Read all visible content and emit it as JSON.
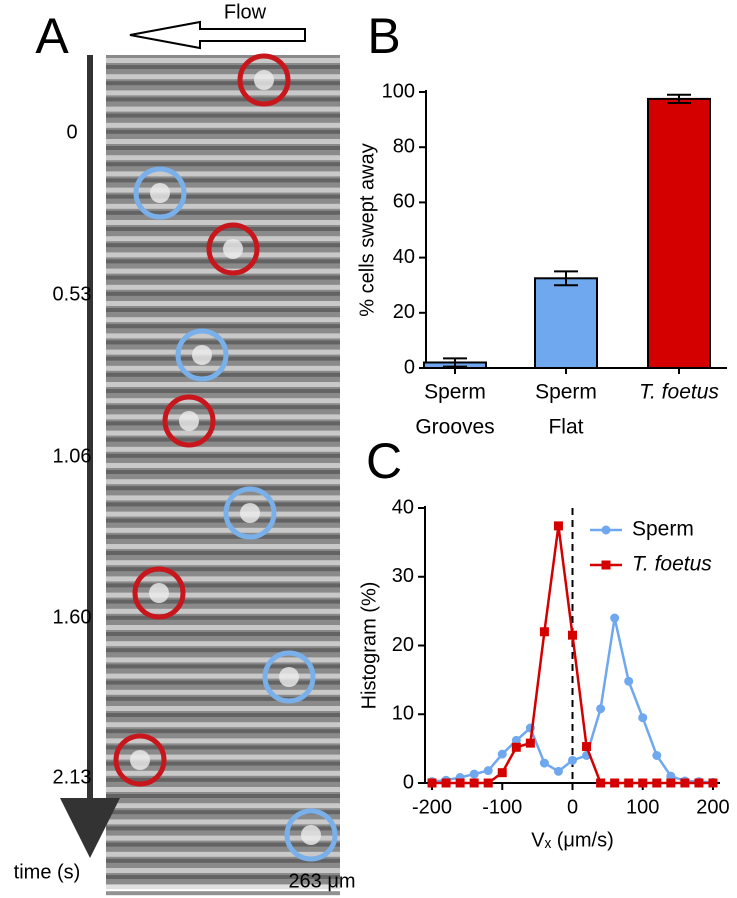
{
  "panel_labels": [
    "A",
    "B",
    "C"
  ],
  "panel_a": {
    "flow_label": "Flow",
    "time_labels": [
      "0",
      "0.53",
      "1.06",
      "1.60",
      "2.13"
    ],
    "time_axis_label": "time (s)",
    "scale_label": "263 μm"
  },
  "chart_data": [
    {
      "type": "bar",
      "ylabel": "% cells swept away",
      "categories": [
        [
          "Sperm",
          "Grooves"
        ],
        [
          "Sperm",
          "Flat"
        ],
        [
          "T. foetus"
        ]
      ],
      "category_italic": [
        false,
        false,
        true
      ],
      "values": [
        2,
        32.5,
        97.5
      ],
      "errors": [
        1.5,
        2.5,
        1.5
      ],
      "colors": [
        "#6fa8ef",
        "#6fa8ef",
        "#d40000"
      ],
      "ylim": [
        0,
        100
      ],
      "yticks": [
        0,
        20,
        40,
        60,
        80,
        100
      ]
    },
    {
      "type": "line",
      "xlabel": "Vₓ (μm/s)",
      "ylabel": "Histogram (%)",
      "x": [
        -200,
        -180,
        -160,
        -140,
        -120,
        -100,
        -80,
        -60,
        -40,
        -20,
        0,
        20,
        40,
        60,
        80,
        100,
        120,
        140,
        160,
        180,
        200
      ],
      "series": [
        {
          "name": "Sperm",
          "color": "#6fa8ef",
          "marker": "circle",
          "italic": false,
          "values": [
            0.2,
            0.4,
            0.8,
            1.3,
            1.8,
            4.2,
            6.2,
            8,
            2.9,
            1.7,
            3.3,
            4,
            10.8,
            24,
            14.8,
            9.5,
            4,
            1,
            0.3,
            0.2,
            0.1
          ]
        },
        {
          "name": "T. foetus",
          "color": "#d40000",
          "marker": "square",
          "italic": true,
          "values": [
            0,
            0,
            0,
            0,
            0,
            1.5,
            5.2,
            5.8,
            22,
            37.4,
            21.5,
            5.3,
            0,
            0,
            0,
            0,
            0,
            0,
            0,
            0,
            0
          ]
        }
      ],
      "xlim": [
        -210,
        210
      ],
      "ylim": [
        0,
        40
      ],
      "xticks": [
        -200,
        -100,
        0,
        100,
        200
      ],
      "yticks": [
        0,
        10,
        20,
        30,
        40
      ],
      "reference_line": 0
    }
  ]
}
